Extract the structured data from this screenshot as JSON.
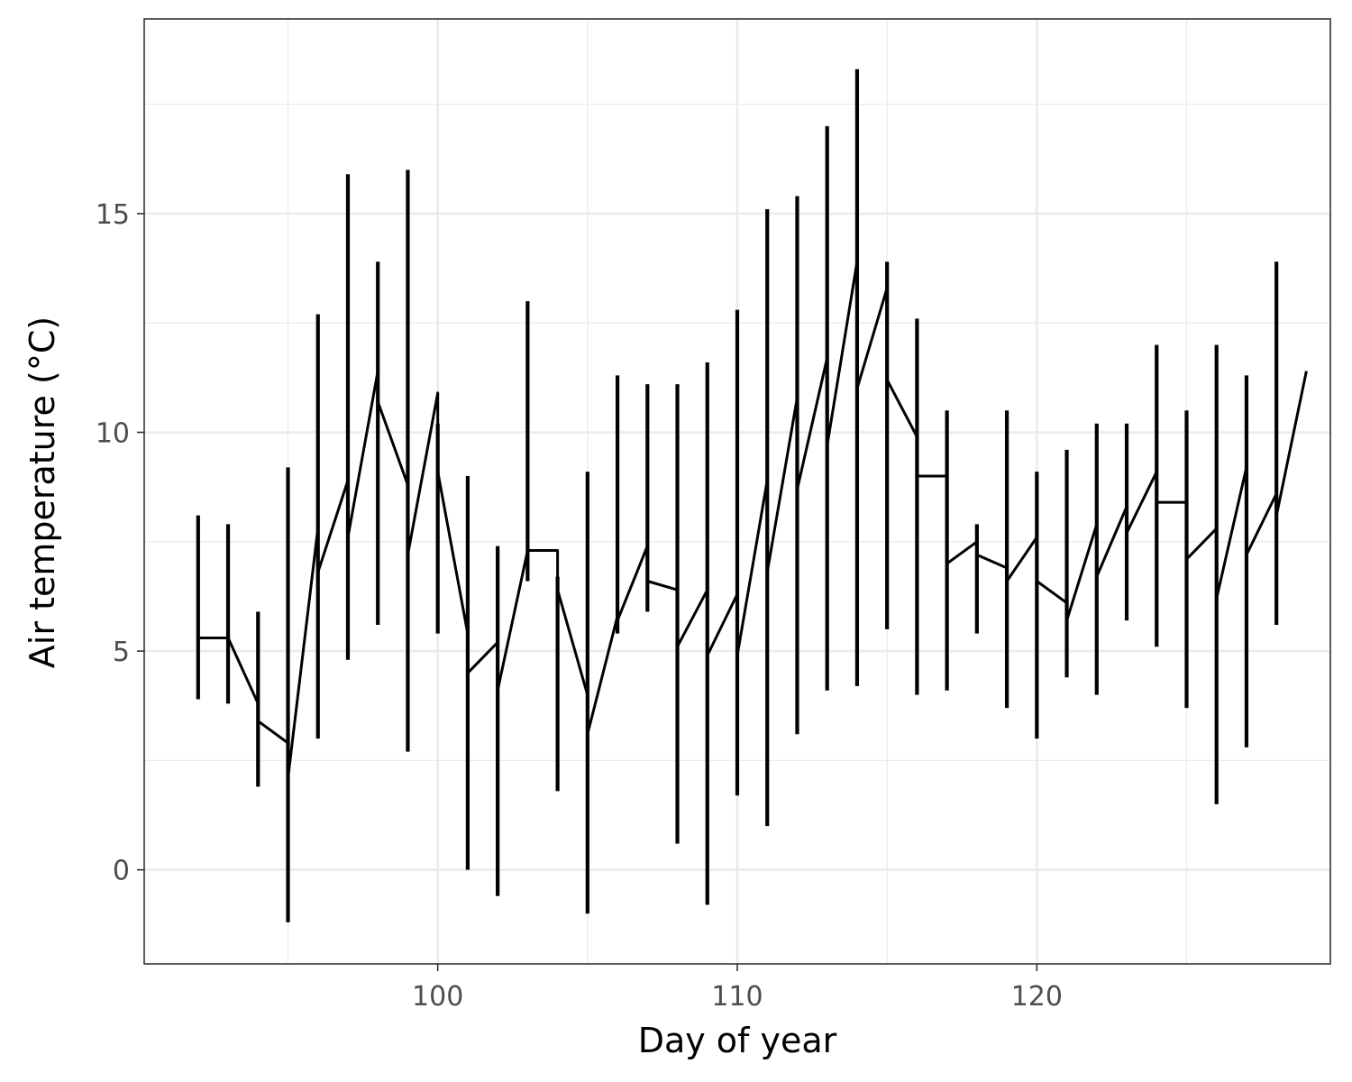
{
  "chart_data": {
    "type": "line",
    "xlabel": "Day of year",
    "ylabel": "Air temperature (°C)",
    "xlim": [
      90.2,
      129.8
    ],
    "ylim": [
      -2.15,
      19.45
    ],
    "xticks": [
      100,
      110,
      120
    ],
    "yticks": [
      0,
      5,
      10,
      15
    ],
    "x_minor_gridlines": [
      95,
      105,
      115,
      125
    ],
    "y_minor_gridlines": [
      2.5,
      7.5,
      12.5,
      17.5
    ],
    "grid": true,
    "legend": "none",
    "colors": {
      "line": "#000000",
      "grid": "#ebebeb",
      "panel_border": "#333333",
      "tick_text": "#4d4d4d"
    },
    "days": [
      {
        "day": 92,
        "first": 5.3,
        "last": 5.3,
        "min": 3.9,
        "max": 8.1
      },
      {
        "day": 93,
        "first": 5.3,
        "last": 3.8,
        "min": 3.8,
        "max": 7.9
      },
      {
        "day": 94,
        "first": 3.4,
        "last": 2.9,
        "min": 1.9,
        "max": 5.9
      },
      {
        "day": 95,
        "first": 2.1,
        "last": 7.8,
        "min": -1.2,
        "max": 9.2
      },
      {
        "day": 96,
        "first": 6.8,
        "last": 8.9,
        "min": 3.0,
        "max": 12.7
      },
      {
        "day": 97,
        "first": 7.6,
        "last": 11.4,
        "min": 4.8,
        "max": 15.9
      },
      {
        "day": 98,
        "first": 10.7,
        "last": 8.8,
        "min": 5.6,
        "max": 13.9
      },
      {
        "day": 99,
        "first": 7.2,
        "last": 10.9,
        "min": 2.7,
        "max": 16.0
      },
      {
        "day": 100,
        "first": 9.1,
        "last": 5.4,
        "min": 5.4,
        "max": 10.2
      },
      {
        "day": 101,
        "first": 4.5,
        "last": 5.2,
        "min": 0.0,
        "max": 9.0
      },
      {
        "day": 102,
        "first": 4.1,
        "last": 7.3,
        "min": -0.6,
        "max": 7.4
      },
      {
        "day": 103,
        "first": 7.3,
        "last": 7.3,
        "min": 6.6,
        "max": 13.0
      },
      {
        "day": 104,
        "first": 6.4,
        "last": 4.0,
        "min": 1.8,
        "max": 6.7
      },
      {
        "day": 105,
        "first": 3.1,
        "last": 5.8,
        "min": -1.0,
        "max": 9.1
      },
      {
        "day": 106,
        "first": 5.7,
        "last": 7.4,
        "min": 5.4,
        "max": 11.3
      },
      {
        "day": 107,
        "first": 6.6,
        "last": 6.4,
        "min": 5.9,
        "max": 11.1
      },
      {
        "day": 108,
        "first": 5.1,
        "last": 6.4,
        "min": 0.6,
        "max": 11.1
      },
      {
        "day": 109,
        "first": 4.9,
        "last": 6.3,
        "min": -0.8,
        "max": 11.6
      },
      {
        "day": 110,
        "first": 4.9,
        "last": 8.9,
        "min": 1.7,
        "max": 12.8
      },
      {
        "day": 111,
        "first": 6.8,
        "last": 10.8,
        "min": 1.0,
        "max": 15.1
      },
      {
        "day": 112,
        "first": 8.7,
        "last": 11.7,
        "min": 3.1,
        "max": 15.4
      },
      {
        "day": 113,
        "first": 9.7,
        "last": 13.9,
        "min": 4.1,
        "max": 17.0
      },
      {
        "day": 114,
        "first": 11.0,
        "last": 13.3,
        "min": 4.2,
        "max": 18.3
      },
      {
        "day": 115,
        "first": 11.2,
        "last": 9.9,
        "min": 5.5,
        "max": 13.9
      },
      {
        "day": 116,
        "first": 9.0,
        "last": 9.0,
        "min": 4.0,
        "max": 12.6
      },
      {
        "day": 117,
        "first": 7.0,
        "last": 7.5,
        "min": 4.1,
        "max": 10.5
      },
      {
        "day": 118,
        "first": 7.2,
        "last": 6.9,
        "min": 5.4,
        "max": 7.9
      },
      {
        "day": 119,
        "first": 6.6,
        "last": 7.6,
        "min": 3.7,
        "max": 10.5
      },
      {
        "day": 120,
        "first": 6.6,
        "last": 6.1,
        "min": 3.0,
        "max": 9.1
      },
      {
        "day": 121,
        "first": 5.7,
        "last": 7.9,
        "min": 4.4,
        "max": 9.6
      },
      {
        "day": 122,
        "first": 6.7,
        "last": 8.3,
        "min": 4.0,
        "max": 10.2
      },
      {
        "day": 123,
        "first": 7.7,
        "last": 9.1,
        "min": 5.7,
        "max": 10.2
      },
      {
        "day": 124,
        "first": 8.4,
        "last": 8.4,
        "min": 5.1,
        "max": 12.0
      },
      {
        "day": 125,
        "first": 7.1,
        "last": 7.8,
        "min": 3.7,
        "max": 10.5
      },
      {
        "day": 126,
        "first": 6.2,
        "last": 9.2,
        "min": 1.5,
        "max": 12.0
      },
      {
        "day": 127,
        "first": 7.2,
        "last": 8.6,
        "min": 2.8,
        "max": 11.3
      },
      {
        "day": 128,
        "first": 8.1,
        "last": 11.4,
        "min": 5.6,
        "max": 13.9
      }
    ]
  }
}
